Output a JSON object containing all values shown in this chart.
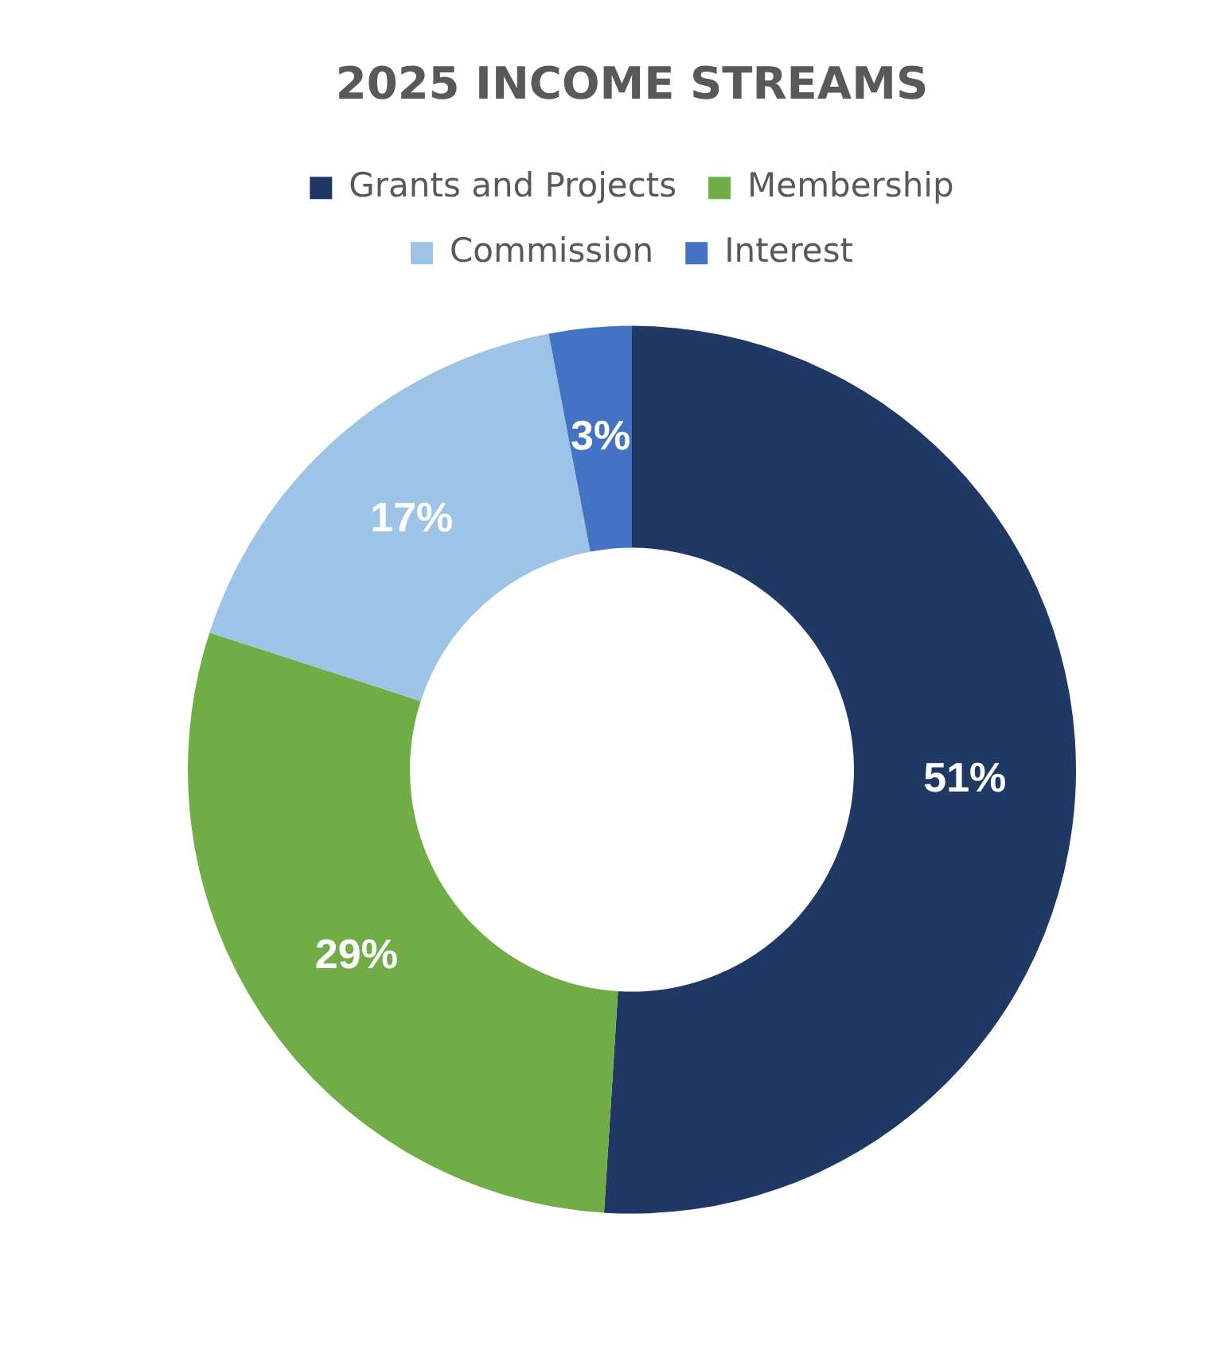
{
  "chart_data": {
    "type": "donut",
    "title": "2025 INCOME STREAMS",
    "categories": [
      "Grants and Projects",
      "Membership",
      "Commission",
      "Interest"
    ],
    "values": [
      51,
      29,
      17,
      3
    ],
    "colors": [
      "#1f3864",
      "#70ad47",
      "#9dc3e6",
      "#4472c4"
    ],
    "value_labels": [
      "51%",
      "29%",
      "17%",
      "3%"
    ],
    "legend": "top"
  }
}
